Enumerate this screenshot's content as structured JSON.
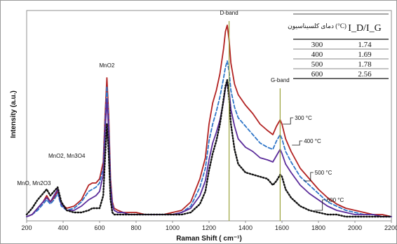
{
  "chart_data": {
    "type": "line",
    "xlabel": "Raman Shift ( cm⁻¹)",
    "ylabel": "Intensity (a.u.)",
    "xlim": [
      200,
      2200
    ],
    "ylim": [
      0,
      100
    ],
    "y_ticks_shown": false,
    "grid": false,
    "x_ticks": [
      "200",
      "400",
      "600",
      "800",
      "1000",
      "1200",
      "1400",
      "1600",
      "1800",
      "2000",
      "2200"
    ],
    "series": [
      {
        "name": "300 °C",
        "color": "#b22222",
        "dash": "solid",
        "x": [
          200,
          230,
          260,
          290,
          310,
          330,
          350,
          370,
          390,
          420,
          460,
          500,
          540,
          560,
          580,
          600,
          620,
          630,
          640,
          650,
          660,
          670,
          680,
          700,
          730,
          760,
          800,
          850,
          900,
          950,
          1000,
          1050,
          1100,
          1150,
          1180,
          1200,
          1220,
          1240,
          1260,
          1280,
          1290,
          1300,
          1310,
          1320,
          1340,
          1360,
          1400,
          1440,
          1480,
          1520,
          1550,
          1570,
          1590,
          1600,
          1620,
          1650,
          1700,
          1750,
          1800,
          1850,
          1900,
          1950,
          2000,
          2050,
          2100,
          2150,
          2200
        ],
        "y": [
          2,
          3,
          6,
          9,
          12,
          9,
          11,
          14,
          8,
          6,
          7,
          10,
          17,
          18,
          18,
          20,
          28,
          50,
          68,
          50,
          20,
          9,
          6,
          5,
          4,
          4,
          4,
          3,
          3,
          3,
          4,
          5,
          9,
          20,
          30,
          46,
          56,
          62,
          70,
          82,
          90,
          93,
          86,
          75,
          65,
          60,
          55,
          51,
          46,
          43,
          41,
          45,
          48,
          46,
          39,
          33,
          25,
          20,
          15,
          11,
          8,
          6,
          5,
          4,
          3,
          3,
          2
        ]
      },
      {
        "name": "400 °C",
        "color": "#2e75c8",
        "dash": "dashed",
        "x": [
          200,
          230,
          260,
          290,
          310,
          330,
          350,
          370,
          390,
          420,
          460,
          500,
          540,
          560,
          580,
          600,
          620,
          630,
          640,
          650,
          660,
          670,
          680,
          700,
          730,
          760,
          800,
          850,
          900,
          950,
          1000,
          1050,
          1100,
          1150,
          1180,
          1200,
          1220,
          1240,
          1260,
          1280,
          1290,
          1300,
          1310,
          1320,
          1340,
          1360,
          1400,
          1440,
          1480,
          1520,
          1550,
          1570,
          1590,
          1600,
          1620,
          1650,
          1700,
          1750,
          1800,
          1850,
          1900,
          1950,
          2000,
          2050,
          2100,
          2150,
          2200
        ],
        "y": [
          2,
          3,
          5,
          8,
          10,
          8,
          10,
          13,
          7,
          5,
          6,
          9,
          14,
          15,
          16,
          18,
          25,
          46,
          64,
          46,
          18,
          8,
          5,
          4,
          4,
          3,
          3,
          3,
          3,
          3,
          3,
          4,
          7,
          16,
          25,
          38,
          46,
          52,
          59,
          68,
          73,
          76,
          71,
          62,
          54,
          49,
          45,
          41,
          37,
          35,
          34,
          38,
          41,
          39,
          33,
          28,
          21,
          17,
          13,
          9,
          7,
          5,
          4,
          3,
          3,
          2,
          2
        ]
      },
      {
        "name": "500 °C",
        "color": "#5b2c9a",
        "dash": "solid",
        "x": [
          200,
          230,
          260,
          290,
          310,
          330,
          350,
          370,
          390,
          420,
          460,
          500,
          540,
          560,
          580,
          600,
          620,
          630,
          640,
          650,
          660,
          670,
          680,
          700,
          730,
          760,
          800,
          850,
          900,
          950,
          1000,
          1050,
          1100,
          1150,
          1180,
          1200,
          1220,
          1240,
          1260,
          1280,
          1290,
          1300,
          1310,
          1320,
          1340,
          1360,
          1400,
          1440,
          1480,
          1520,
          1550,
          1570,
          1590,
          1600,
          1620,
          1650,
          1700,
          1750,
          1800,
          1850,
          1900,
          1950,
          2000,
          2050,
          2100,
          2150,
          2200
        ],
        "y": [
          2,
          3,
          6,
          9,
          11,
          9,
          12,
          15,
          8,
          5,
          5,
          7,
          10,
          11,
          12,
          14,
          22,
          42,
          58,
          42,
          16,
          7,
          5,
          4,
          4,
          3,
          3,
          3,
          3,
          3,
          3,
          4,
          6,
          12,
          19,
          29,
          37,
          42,
          48,
          57,
          63,
          66,
          62,
          53,
          45,
          39,
          35,
          33,
          30,
          29,
          28,
          31,
          34,
          32,
          27,
          23,
          17,
          13,
          10,
          7,
          5,
          4,
          3,
          3,
          3,
          2,
          2
        ]
      },
      {
        "name": "600 °C",
        "color": "#111111",
        "dash": "dotted",
        "x": [
          200,
          230,
          260,
          290,
          310,
          330,
          350,
          370,
          390,
          420,
          460,
          500,
          540,
          560,
          580,
          600,
          620,
          630,
          640,
          650,
          660,
          670,
          680,
          700,
          730,
          760,
          800,
          850,
          900,
          950,
          1000,
          1050,
          1100,
          1150,
          1180,
          1200,
          1220,
          1240,
          1260,
          1280,
          1290,
          1300,
          1310,
          1320,
          1340,
          1360,
          1400,
          1440,
          1480,
          1520,
          1550,
          1570,
          1590,
          1600,
          1620,
          1650,
          1700,
          1750,
          1800,
          1850,
          1900,
          1950,
          2000,
          2050,
          2100,
          2150,
          2200
        ],
        "y": [
          3,
          6,
          10,
          13,
          15,
          12,
          14,
          16,
          9,
          5,
          4,
          4,
          5,
          6,
          6,
          6,
          12,
          30,
          46,
          32,
          10,
          4,
          3,
          3,
          3,
          3,
          3,
          3,
          3,
          3,
          3,
          3,
          4,
          8,
          14,
          24,
          32,
          38,
          46,
          58,
          64,
          67,
          58,
          46,
          34,
          27,
          23,
          22,
          21,
          20,
          17,
          19,
          22,
          21,
          15,
          11,
          7,
          5,
          4,
          3,
          3,
          2,
          2,
          2,
          2,
          2,
          2
        ]
      }
    ],
    "annotations": [
      {
        "text": "MnO, Mn2O3",
        "x": 240,
        "y": 17
      },
      {
        "text": "MnO2, Mn3O4",
        "x": 420,
        "y": 30
      },
      {
        "text": "MnO2",
        "x": 640,
        "y": 73
      },
      {
        "text": "D-band",
        "x": 1310,
        "y": 98
      },
      {
        "text": "G-band",
        "x": 1590,
        "y": 66
      }
    ],
    "band_lines": [
      {
        "x": 1310,
        "y_from": 0,
        "y_to": 95
      },
      {
        "x": 1590,
        "y_from": 0,
        "y_to": 63
      }
    ],
    "series_labels": [
      {
        "text": "300 °C",
        "x": 1670,
        "y": 48,
        "pointer_x": 1605,
        "pointer_y": 46
      },
      {
        "text": "400 °C",
        "x": 1720,
        "y": 37,
        "pointer_x": 1655,
        "pointer_y": 36
      },
      {
        "text": "500 °C",
        "x": 1780,
        "y": 22,
        "pointer_x": 1720,
        "pointer_y": 19
      },
      {
        "text": "600 °C",
        "x": 1845,
        "y": 9,
        "pointer_x": 1780,
        "pointer_y": 5
      }
    ],
    "inset_table": {
      "headers": [
        "دمای کلسیناسیون (°C)",
        "I_D/I_G"
      ],
      "rows": [
        [
          "300",
          "1.74"
        ],
        [
          "400",
          "1.69"
        ],
        [
          "500",
          "1.78"
        ],
        [
          "600",
          "2.56"
        ]
      ]
    }
  }
}
